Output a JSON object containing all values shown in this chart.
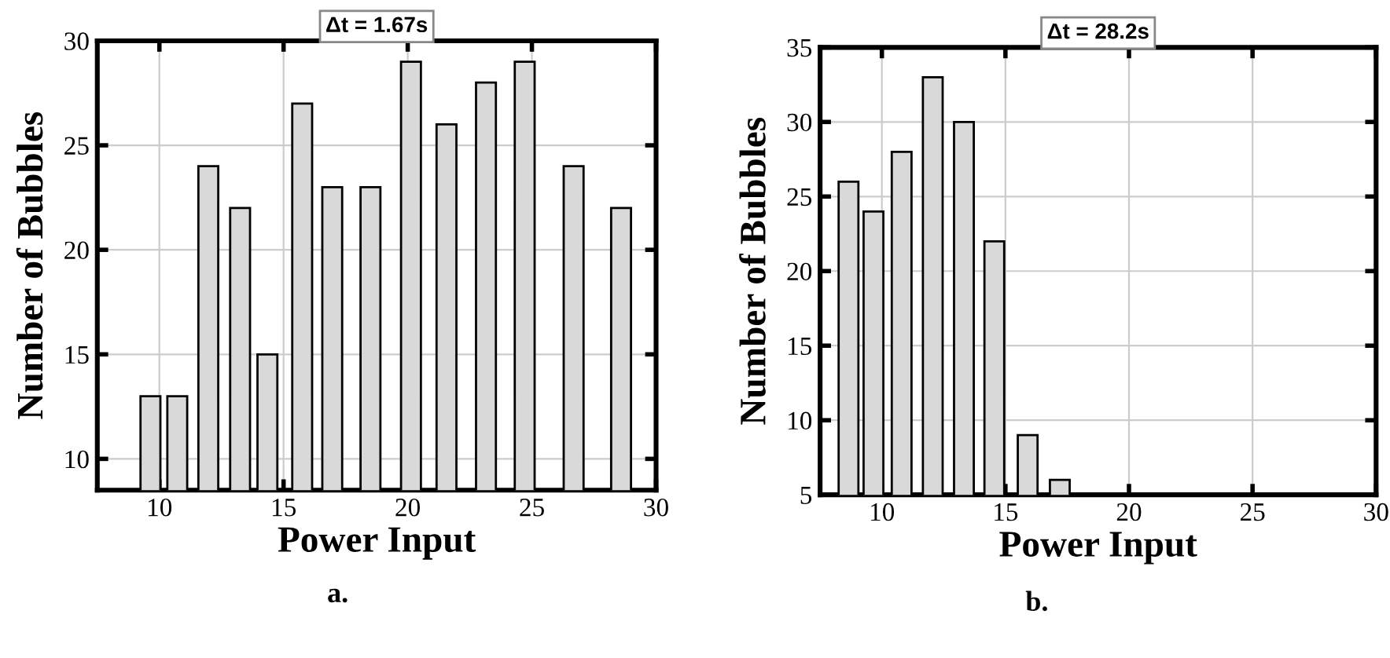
{
  "chart_data": [
    {
      "type": "bar",
      "title": "Δt = 1.67s",
      "xlabel": "Power Input",
      "ylabel": "Number of Bubbles",
      "x": [
        9.64,
        10.72,
        11.97,
        13.25,
        14.35,
        15.75,
        16.96,
        18.5,
        20.13,
        21.56,
        23.15,
        24.71,
        26.68,
        28.59
      ],
      "series": [
        {
          "color": "#d9d9d9",
          "values": [
            13,
            13,
            24,
            22,
            15,
            27,
            23,
            23,
            29,
            26,
            28,
            29,
            24,
            22
          ]
        }
      ],
      "xlim": [
        7.5,
        30
      ],
      "xticks": [
        10,
        15,
        20,
        25,
        30
      ],
      "ylim": [
        8.5,
        30
      ],
      "yticks": [
        10,
        15,
        20,
        25,
        30
      ],
      "grid": true,
      "annotations": [
        "a."
      ]
    },
    {
      "type": "bar",
      "title": "Δt = 28.2s",
      "xlabel": "Power Input",
      "ylabel": "Number of Bubbles",
      "x": [
        8.65,
        9.66,
        10.8,
        12.06,
        13.32,
        14.55,
        15.9,
        17.2
      ],
      "series": [
        {
          "color": "#d9d9d9",
          "values": [
            26,
            24,
            28,
            33,
            30,
            22,
            9,
            6
          ]
        }
      ],
      "xlim": [
        7.5,
        30
      ],
      "xticks": [
        10,
        15,
        20,
        25,
        30
      ],
      "ylim": [
        5,
        35
      ],
      "yticks": [
        5,
        10,
        15,
        20,
        25,
        30,
        35
      ],
      "grid": true,
      "annotations": [
        "b."
      ]
    }
  ]
}
